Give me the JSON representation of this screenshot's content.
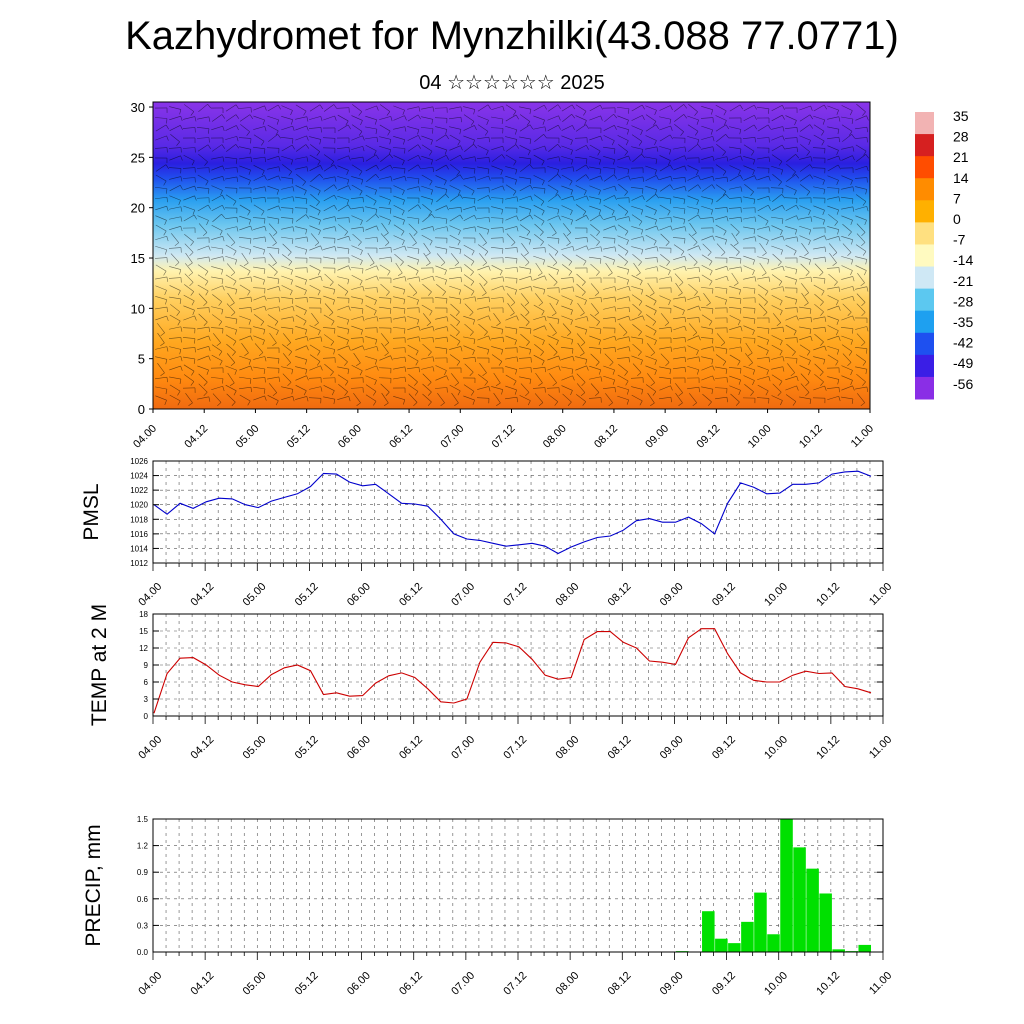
{
  "header": {
    "title": "Kazhydromet for Mynzhilki(43.088 77.0771)",
    "subtitle": "04 ☆☆☆☆☆☆ 2025"
  },
  "time_ticks": [
    "04.00",
    "04.12",
    "05.00",
    "05.12",
    "06.00",
    "06.12",
    "07.00",
    "07.12",
    "08.00",
    "08.12",
    "09.00",
    "09.12",
    "10.00",
    "10.12",
    "11.00"
  ],
  "colors": {
    "pmsl": "#0000cc",
    "temp": "#cc0000",
    "precip": "#00e000",
    "colorbar": [
      "#f2b3b3",
      "#d62020",
      "#ff4d00",
      "#ff8c00",
      "#ffb000",
      "#ffe080",
      "#fffac0",
      "#cfe8f5",
      "#5cc8f0",
      "#1ea0f0",
      "#1e50f0",
      "#3a1ee6",
      "#8a2ee6"
    ]
  },
  "chart_data": [
    {
      "type": "heatmap",
      "title": "",
      "colorbar_labels": [
        "35",
        "28",
        "21",
        "14",
        "7",
        "0",
        "-7",
        "-14",
        "-21",
        "-28",
        "-35",
        "-42",
        "-49",
        "-56"
      ],
      "y_ticks": [
        "0",
        "5",
        "10",
        "15",
        "20",
        "25",
        "30"
      ],
      "ylim": [
        0,
        30.5
      ],
      "x_ticks": [
        "04.00",
        "04.12",
        "05.00",
        "05.12",
        "06.00",
        "06.12",
        "07.00",
        "07.12",
        "08.00",
        "08.12",
        "09.00",
        "09.12",
        "10.00",
        "10.12",
        "11.00"
      ],
      "xlim": [
        0,
        14
      ],
      "overlay": "wind barbs"
    },
    {
      "type": "line",
      "ylabel": "PMSL",
      "ylim": [
        1012,
        1026
      ],
      "y_ticks": [
        "1012",
        "1014",
        "1016",
        "1018",
        "1020",
        "1022",
        "1024",
        "1026"
      ],
      "x_ticks": [
        "04.00",
        "04.12",
        "05.00",
        "05.12",
        "06.00",
        "06.12",
        "07.00",
        "07.12",
        "08.00",
        "08.12",
        "09.00",
        "09.12",
        "10.00",
        "10.12",
        "11.00"
      ],
      "x": [
        0,
        0.25,
        0.5,
        0.75,
        1,
        1.25,
        1.5,
        1.75,
        2,
        2.25,
        2.5,
        2.75,
        3,
        3.25,
        3.5,
        3.75,
        4,
        4.25,
        4.5,
        4.75,
        5,
        5.25,
        5.5,
        5.75,
        6,
        6.25,
        6.5,
        6.75,
        7,
        7.25,
        7.5,
        7.75,
        8,
        8.25,
        8.5,
        8.75,
        9,
        9.25,
        9.5,
        9.75,
        10,
        10.25,
        10.5,
        10.75,
        11,
        11.25,
        11.5,
        11.75,
        12,
        12.25,
        12.5,
        12.75,
        13,
        13.25,
        13.5,
        13.75
      ],
      "series": [
        {
          "values": [
            1020,
            1018.7,
            1020.2,
            1019.5,
            1020.4,
            1020.9,
            1020.8,
            1020,
            1019.6,
            1020.5,
            1021,
            1021.5,
            1022.5,
            1024.3,
            1024.2,
            1023.1,
            1022.6,
            1022.8,
            1021.5,
            1020.2,
            1020.1,
            1019.8,
            1018,
            1016,
            1015.3,
            1015.1,
            1014.7,
            1014.3,
            1014.5,
            1014.7,
            1014.3,
            1013.3,
            1014.2,
            1014.9,
            1015.5,
            1015.7,
            1016.5,
            1017.8,
            1018.1,
            1017.6,
            1017.6,
            1018.3,
            1017.4,
            1016,
            1020.2,
            1023,
            1022.4,
            1021.5,
            1021.6,
            1022.8,
            1022.8,
            1023,
            1024.2,
            1024.5,
            1024.6,
            1023.9
          ]
        }
      ]
    },
    {
      "type": "line",
      "ylabel": "TEMP at 2 M",
      "ylim": [
        0,
        18
      ],
      "y_ticks": [
        "0",
        "3",
        "6",
        "9",
        "12",
        "15",
        "18"
      ],
      "x_ticks": [
        "04.00",
        "04.12",
        "05.00",
        "05.12",
        "06.00",
        "06.12",
        "07.00",
        "07.12",
        "08.00",
        "08.12",
        "09.00",
        "09.12",
        "10.00",
        "10.12",
        "11.00"
      ],
      "x": [
        0,
        0.25,
        0.5,
        0.75,
        1,
        1.25,
        1.5,
        1.75,
        2,
        2.25,
        2.5,
        2.75,
        3,
        3.25,
        3.5,
        3.75,
        4,
        4.25,
        4.5,
        4.75,
        5,
        5.25,
        5.5,
        5.75,
        6,
        6.25,
        6.5,
        6.75,
        7,
        7.25,
        7.5,
        7.75,
        8,
        8.25,
        8.5,
        8.75,
        9,
        9.25,
        9.5,
        9.75,
        10,
        10.25,
        10.5,
        10.75,
        11,
        11.25,
        11.5,
        11.75,
        12,
        12.25,
        12.5,
        12.75,
        13,
        13.25,
        13.5,
        13.75
      ],
      "series": [
        {
          "values": [
            0.5,
            7.5,
            10.2,
            10.3,
            9,
            7.2,
            6,
            5.5,
            5.2,
            7.3,
            8.5,
            9,
            8,
            3.8,
            4.1,
            3.5,
            3.6,
            5.8,
            7.1,
            7.6,
            6.8,
            4.8,
            2.5,
            2.3,
            3,
            9.5,
            13,
            12.9,
            12.2,
            10,
            7.2,
            6.5,
            6.8,
            13.5,
            14.9,
            14.9,
            13,
            12,
            9.7,
            9.5,
            9.1,
            13.8,
            15.4,
            15.4,
            11,
            7.6,
            6.3,
            6,
            6,
            7.2,
            7.9,
            7.5,
            7.6,
            5.2,
            4.8,
            4.1
          ]
        }
      ]
    },
    {
      "type": "bar",
      "ylabel": "PRECIP, mm",
      "ylim": [
        0,
        1.5
      ],
      "y_ticks": [
        "0.0",
        "0.3",
        "0.6",
        "0.9",
        "1.2",
        "1.5"
      ],
      "x_ticks": [
        "04.00",
        "04.12",
        "05.00",
        "05.12",
        "06.00",
        "06.12",
        "07.00",
        "07.12",
        "08.00",
        "08.12",
        "09.00",
        "09.12",
        "10.00",
        "10.12",
        "11.00"
      ],
      "x": [
        0,
        0.25,
        0.5,
        0.75,
        1,
        1.25,
        1.5,
        1.75,
        2,
        2.25,
        2.5,
        2.75,
        3,
        3.25,
        3.5,
        3.75,
        4,
        4.25,
        4.5,
        4.75,
        5,
        5.25,
        5.5,
        5.75,
        6,
        6.25,
        6.5,
        6.75,
        7,
        7.25,
        7.5,
        7.75,
        8,
        8.25,
        8.5,
        8.75,
        9,
        9.25,
        9.5,
        9.75,
        10,
        10.25,
        10.5,
        10.75,
        11,
        11.25,
        11.5,
        11.75,
        12,
        12.25,
        12.5,
        12.75,
        13,
        13.25,
        13.5,
        13.75
      ],
      "series": [
        {
          "values": [
            0,
            0,
            0,
            0,
            0,
            0,
            0,
            0,
            0,
            0,
            0,
            0,
            0,
            0,
            0,
            0,
            0,
            0,
            0,
            0,
            0,
            0,
            0,
            0,
            0,
            0,
            0,
            0,
            0,
            0,
            0,
            0,
            0,
            0,
            0,
            0,
            0,
            0,
            0,
            0,
            0.01,
            0,
            0.46,
            0.15,
            0.1,
            0.34,
            0.67,
            0.2,
            1.5,
            1.18,
            0.94,
            0.66,
            0.03,
            0.01,
            0.08,
            0
          ]
        }
      ]
    }
  ]
}
